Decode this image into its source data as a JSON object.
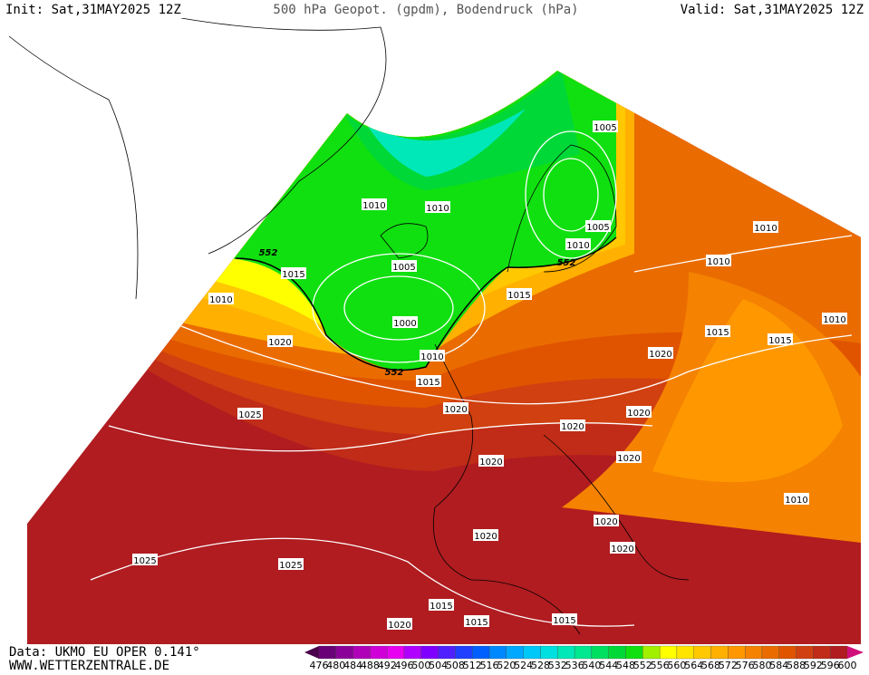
{
  "header": {
    "init": "Init: Sat,31MAY2025 12Z",
    "title": "500 hPa Geopot. (gpdm), Bodendruck (hPa)",
    "valid": "Valid: Sat,31MAY2025 12Z"
  },
  "footer": {
    "source": "Data: UKMO EU OPER 0.141°",
    "site": "WWW.WETTERZENTRALE.DE"
  },
  "isobar_labels": [
    "1005",
    "1010",
    "1010",
    "1015",
    "1010",
    "1005",
    "1000",
    "1005",
    "1010",
    "1015",
    "1010",
    "1010",
    "1010",
    "1020",
    "1010",
    "1015",
    "1020",
    "1020",
    "1015",
    "1015",
    "1025",
    "1020",
    "1020",
    "1020",
    "1020",
    "1010",
    "1020",
    "1020",
    "1020",
    "1025",
    "1025",
    "1015",
    "1015",
    "1020",
    "1015"
  ],
  "contour_labels": [
    "552",
    "552",
    "552"
  ],
  "legend": {
    "levels": [
      476,
      480,
      484,
      488,
      492,
      496,
      500,
      504,
      508,
      512,
      516,
      520,
      524,
      528,
      532,
      536,
      540,
      544,
      548,
      552,
      556,
      560,
      564,
      568,
      572,
      576,
      580,
      584,
      588,
      592,
      596,
      600
    ],
    "colors": [
      "#4a004a",
      "#6a0078",
      "#8a0098",
      "#b000b8",
      "#d000d8",
      "#e800f0",
      "#b000ff",
      "#8000ff",
      "#5020ff",
      "#2040ff",
      "#0060ff",
      "#0088ff",
      "#00a8ff",
      "#00c8f8",
      "#00e0e0",
      "#00e8b8",
      "#00e890",
      "#00e060",
      "#00d838",
      "#10e010",
      "#a0f000",
      "#ffff00",
      "#ffe400",
      "#ffc800",
      "#ffb000",
      "#ff9800",
      "#f58200",
      "#ea6c00",
      "#e05400",
      "#d04010",
      "#c02c18",
      "#b01c20",
      "#a01028",
      "#d0107a"
    ]
  }
}
